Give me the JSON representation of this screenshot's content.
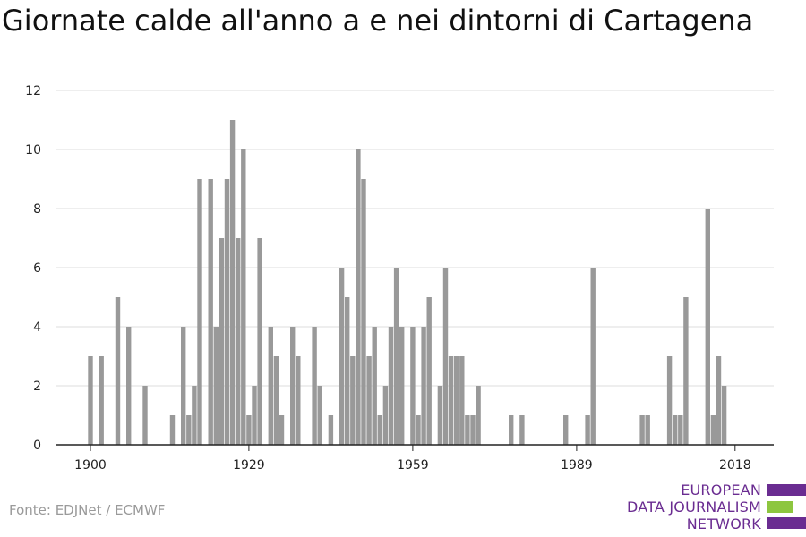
{
  "title": "Giornate calde all'anno a e nei dintorni di Cartagena",
  "source": "Fonte: EDJNet / ECMWF",
  "logo": {
    "lines": [
      "EUROPEAN",
      "DATA JOURNALISM",
      "NETWORK"
    ],
    "colors": {
      "purple": "#6a2c91",
      "green": "#8dc63f"
    }
  },
  "chart_data": {
    "type": "bar",
    "title": "Giornate calde all'anno a e nei dintorni di Cartagena",
    "xlabel": "",
    "ylabel": "",
    "ylim": [
      0,
      12
    ],
    "yticks": [
      0,
      2,
      4,
      6,
      8,
      10,
      12
    ],
    "xticks": [
      1900,
      1929,
      1959,
      1989,
      2018
    ],
    "bar_color": "#999999",
    "grid": true,
    "x": [
      1900,
      1901,
      1902,
      1903,
      1904,
      1905,
      1906,
      1907,
      1908,
      1909,
      1910,
      1911,
      1912,
      1913,
      1914,
      1915,
      1916,
      1917,
      1918,
      1919,
      1920,
      1921,
      1922,
      1923,
      1924,
      1925,
      1926,
      1927,
      1928,
      1929,
      1930,
      1931,
      1932,
      1933,
      1934,
      1935,
      1936,
      1937,
      1938,
      1939,
      1940,
      1941,
      1942,
      1943,
      1944,
      1945,
      1946,
      1947,
      1948,
      1949,
      1950,
      1951,
      1952,
      1953,
      1954,
      1955,
      1956,
      1957,
      1958,
      1959,
      1960,
      1961,
      1962,
      1963,
      1964,
      1965,
      1966,
      1967,
      1968,
      1969,
      1970,
      1971,
      1972,
      1973,
      1974,
      1975,
      1976,
      1977,
      1978,
      1979,
      1980,
      1981,
      1982,
      1983,
      1984,
      1985,
      1986,
      1987,
      1988,
      1989,
      1990,
      1991,
      1992,
      1993,
      1994,
      1995,
      1996,
      1997,
      1998,
      1999,
      2000,
      2001,
      2002,
      2003,
      2004,
      2005,
      2006,
      2007,
      2008,
      2009,
      2010,
      2011,
      2012,
      2013,
      2014,
      2015,
      2016,
      2017,
      2018,
      2019,
      2020
    ],
    "values": [
      3,
      0,
      3,
      0,
      0,
      5,
      0,
      4,
      0,
      0,
      2,
      0,
      0,
      0,
      0,
      1,
      0,
      4,
      1,
      2,
      9,
      0,
      9,
      4,
      7,
      9,
      11,
      7,
      10,
      1,
      2,
      7,
      0,
      4,
      3,
      1,
      0,
      4,
      3,
      0,
      0,
      4,
      2,
      0,
      1,
      0,
      6,
      5,
      3,
      10,
      9,
      3,
      4,
      1,
      2,
      4,
      6,
      4,
      0,
      4,
      1,
      4,
      5,
      0,
      2,
      6,
      3,
      3,
      3,
      1,
      1,
      2,
      0,
      0,
      0,
      0,
      0,
      1,
      0,
      1,
      0,
      0,
      0,
      0,
      0,
      0,
      0,
      1,
      0,
      0,
      0,
      1,
      6,
      0,
      0,
      0,
      0,
      0,
      0,
      0,
      0,
      1,
      1,
      0,
      0,
      0,
      3,
      1,
      1,
      5,
      0,
      0,
      0,
      8,
      1,
      3,
      2,
      0,
      0,
      0,
      0
    ]
  }
}
